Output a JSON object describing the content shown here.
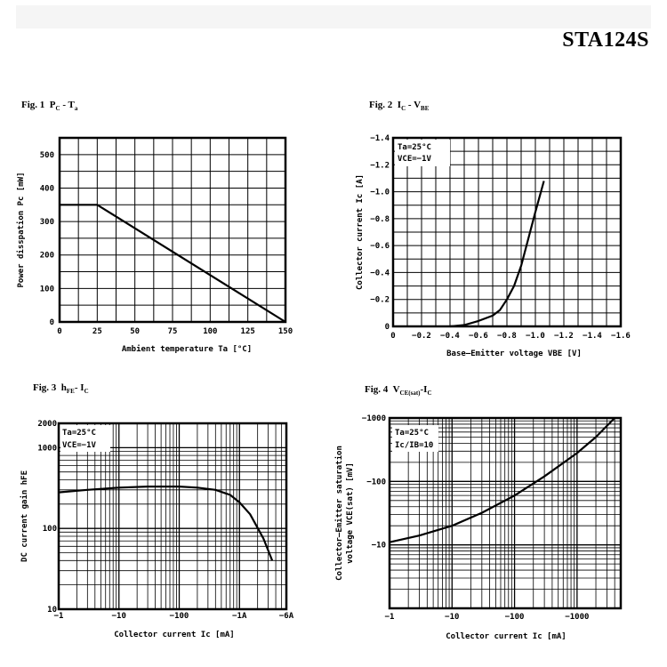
{
  "page": {
    "part_number": "STA124S",
    "accent": "#000000",
    "background": "#ffffff"
  },
  "figures": {
    "fig1": {
      "num": "Fig. 1",
      "title": "P",
      "sub1": "C",
      "mid": " - T",
      "sub2": "a"
    },
    "fig2": {
      "num": "Fig. 2",
      "title": "I",
      "sub1": "C",
      "mid": " - V",
      "sub2": "BE"
    },
    "fig3": {
      "num": "Fig. 3",
      "title": "h",
      "sub1": "FE",
      "mid": "- I",
      "sub2": "C"
    },
    "fig4": {
      "num": "Fig. 4",
      "title": "V",
      "sub1": "CE(sat)",
      "mid": "-I",
      "sub2": "C"
    }
  },
  "chart_data": [
    {
      "id": "fig1",
      "type": "line",
      "title": "Fig. 1 PC - Ta",
      "xlabel": "Ambient temperature Ta [°C]",
      "ylabel": "Power disspation Pc [mW]",
      "xlim": [
        0,
        150
      ],
      "ylim": [
        0,
        550
      ],
      "xticks": [
        0,
        25,
        50,
        75,
        100,
        125,
        150
      ],
      "yticks": [
        0,
        100,
        200,
        300,
        400,
        500
      ],
      "grid": true,
      "series": [
        {
          "x": [
            0,
            25,
            150
          ],
          "y": [
            350,
            350,
            0
          ]
        }
      ]
    },
    {
      "id": "fig2",
      "type": "line",
      "title": "Fig. 2 IC - VBE",
      "xlabel": "Base–Emitter voltage VBE [V]",
      "ylabel": "Collector current Ic [A]",
      "xlim": [
        0,
        -1.6
      ],
      "ylim": [
        0,
        -1.4
      ],
      "xticks": [
        0,
        -0.2,
        -0.4,
        -0.6,
        -0.8,
        -1.0,
        -1.2,
        -1.4,
        -1.6
      ],
      "xtick_labels": [
        "0",
        "−0.2",
        "−0.4",
        "−0.6",
        "−0.8",
        "−1.0",
        "−1.2",
        "−1.4",
        "−1.6"
      ],
      "yticks": [
        0,
        -0.2,
        -0.4,
        -0.6,
        -0.8,
        -1.0,
        -1.2,
        -1.4
      ],
      "ytick_labels": [
        "0",
        "−0.2",
        "−0.4",
        "−0.6",
        "−0.8",
        "−1.0",
        "−1.2",
        "−1.4"
      ],
      "annotations": [
        "Ta=25°C",
        "VCE=−1V"
      ],
      "grid": true,
      "series": [
        {
          "x": [
            -0.4,
            -0.5,
            -0.6,
            -0.7,
            -0.75,
            -0.8,
            -0.85,
            -0.9,
            -0.95,
            -1.0,
            -1.06
          ],
          "y": [
            0,
            -0.01,
            -0.04,
            -0.08,
            -0.12,
            -0.2,
            -0.3,
            -0.45,
            -0.65,
            -0.85,
            -1.08
          ]
        }
      ]
    },
    {
      "id": "fig3",
      "type": "line",
      "title": "Fig. 3 hFE- IC",
      "xlabel": "Collector current Ic [mA]",
      "ylabel": "DC current gain hFE",
      "xscale": "log",
      "yscale": "log",
      "xlim": [
        1,
        6000
      ],
      "ylim": [
        10,
        2000
      ],
      "xtick_labels": [
        "−1",
        "−10",
        "−100",
        "−1A",
        "−6A"
      ],
      "ytick_labels": [
        "10",
        "100",
        "1000",
        "2000"
      ],
      "annotations": [
        "Ta=25°C",
        "VCE=−1V"
      ],
      "grid": true,
      "series": [
        {
          "x": [
            1,
            3,
            10,
            30,
            100,
            200,
            400,
            700,
            1000,
            1500,
            2500,
            3500
          ],
          "y": [
            280,
            300,
            320,
            330,
            330,
            320,
            300,
            260,
            210,
            150,
            75,
            40
          ]
        }
      ]
    },
    {
      "id": "fig4",
      "type": "line",
      "title": "Fig. 4 VCE(sat)-IC",
      "xlabel": "Collector current Ic [mA]",
      "ylabel": "Collector–Emitter saturation voltage VCE(sat) [mV]",
      "xscale": "log",
      "yscale": "log",
      "xlim": [
        1,
        5000
      ],
      "ylim": [
        1,
        1000
      ],
      "xtick_labels": [
        "−1",
        "−10",
        "−100",
        "−1000"
      ],
      "ytick_labels": [
        "−10",
        "−100",
        "−1000"
      ],
      "annotations": [
        "Ta=25°C",
        "Ic/IB=10"
      ],
      "grid": true,
      "series": [
        {
          "x": [
            1,
            3,
            10,
            30,
            100,
            300,
            1000,
            2000,
            4000
          ],
          "y": [
            11,
            14,
            20,
            32,
            60,
            120,
            280,
            500,
            1000
          ]
        }
      ]
    }
  ]
}
